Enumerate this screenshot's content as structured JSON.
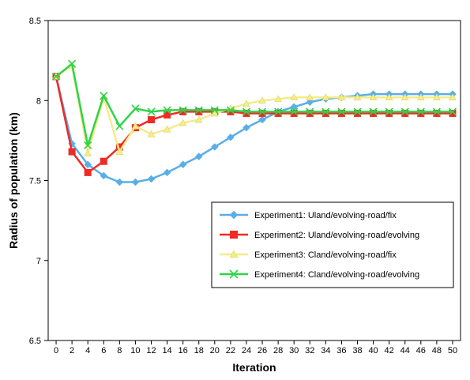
{
  "chart_data": {
    "type": "line",
    "title": "",
    "xlabel": "Iteration",
    "ylabel": "Radius of population (km)",
    "x": [
      0,
      2,
      4,
      6,
      8,
      10,
      12,
      14,
      16,
      18,
      20,
      22,
      24,
      26,
      28,
      30,
      32,
      34,
      36,
      38,
      40,
      42,
      44,
      46,
      48,
      50
    ],
    "xlim": [
      -1,
      51
    ],
    "ylim": [
      6.5,
      8.5
    ],
    "yticks": [
      6.5,
      7,
      7.5,
      8,
      8.5
    ],
    "ytick_labels": [
      "6.5",
      "7",
      "7.5",
      "8",
      "8.5"
    ],
    "grid": false,
    "legend_position": "lower-right",
    "series": [
      {
        "name": "Experiment1: Uland/evolving-road/fix",
        "color": "#5aaee8",
        "marker": "diamond",
        "values": [
          8.15,
          7.73,
          7.6,
          7.53,
          7.49,
          7.49,
          7.51,
          7.55,
          7.6,
          7.65,
          7.71,
          7.77,
          7.83,
          7.88,
          7.93,
          7.96,
          7.99,
          8.01,
          8.02,
          8.03,
          8.04,
          8.04,
          8.04,
          8.04,
          8.04,
          8.04
        ]
      },
      {
        "name": "Experiment2: Uland/evolving-road/evolving",
        "color": "#ee2b24",
        "marker": "square",
        "values": [
          8.15,
          7.68,
          7.55,
          7.62,
          7.71,
          7.83,
          7.88,
          7.91,
          7.93,
          7.93,
          7.93,
          7.93,
          7.92,
          7.92,
          7.92,
          7.92,
          7.92,
          7.92,
          7.92,
          7.92,
          7.92,
          7.92,
          7.92,
          7.92,
          7.92,
          7.92
        ]
      },
      {
        "name": "Experiment3: Cland/evolving-road/fix",
        "color": "#f5ec8a",
        "marker": "triangle",
        "values": [
          8.15,
          8.22,
          7.67,
          8.02,
          7.68,
          7.84,
          7.79,
          7.82,
          7.86,
          7.88,
          7.92,
          7.95,
          7.98,
          8.0,
          8.01,
          8.02,
          8.02,
          8.02,
          8.02,
          8.02,
          8.02,
          8.02,
          8.02,
          8.02,
          8.02,
          8.02
        ]
      },
      {
        "name": "Experiment4: Cland/evolving-road/evolving",
        "color": "#2fd44a",
        "marker": "x",
        "values": [
          8.15,
          8.23,
          7.72,
          8.03,
          7.84,
          7.95,
          7.93,
          7.94,
          7.94,
          7.94,
          7.94,
          7.94,
          7.93,
          7.93,
          7.93,
          7.93,
          7.93,
          7.93,
          7.93,
          7.93,
          7.93,
          7.93,
          7.93,
          7.93,
          7.93,
          7.93
        ]
      }
    ]
  }
}
